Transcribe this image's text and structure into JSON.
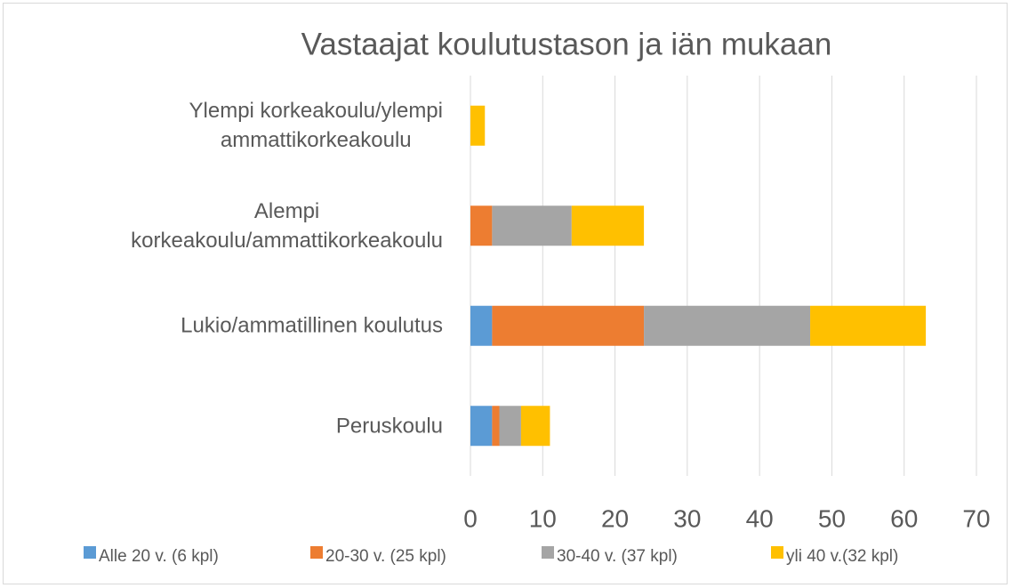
{
  "chart_data": {
    "type": "stacked-bar-horizontal",
    "title": "Vastaajat koulutustason ja iän mukaan",
    "categories": [
      "Ylempi korkeakoulu/ylempi\nammattikorkeakoulu",
      "Alempi\nkorkeakoulu/ammattikorkeakoulu",
      "Lukio/ammatillinen koulutus",
      "Peruskoulu"
    ],
    "series": [
      {
        "name": "Alle 20 v. (6 kpl)",
        "color": "#5b9bd5",
        "values": [
          0,
          0,
          3,
          3
        ]
      },
      {
        "name": "20-30 v. (25 kpl)",
        "color": "#ed7d31",
        "values": [
          0,
          3,
          21,
          1
        ]
      },
      {
        "name": "30-40 v. (37 kpl)",
        "color": "#a5a5a5",
        "values": [
          0,
          11,
          23,
          3
        ]
      },
      {
        "name": "yli 40 v.(32 kpl)",
        "color": "#ffc000",
        "values": [
          2,
          10,
          16,
          4
        ]
      }
    ],
    "xlim": [
      0,
      70
    ],
    "xticks": [
      0,
      10,
      20,
      30,
      40,
      50,
      60,
      70
    ],
    "grid": true,
    "legend": "bottom"
  }
}
